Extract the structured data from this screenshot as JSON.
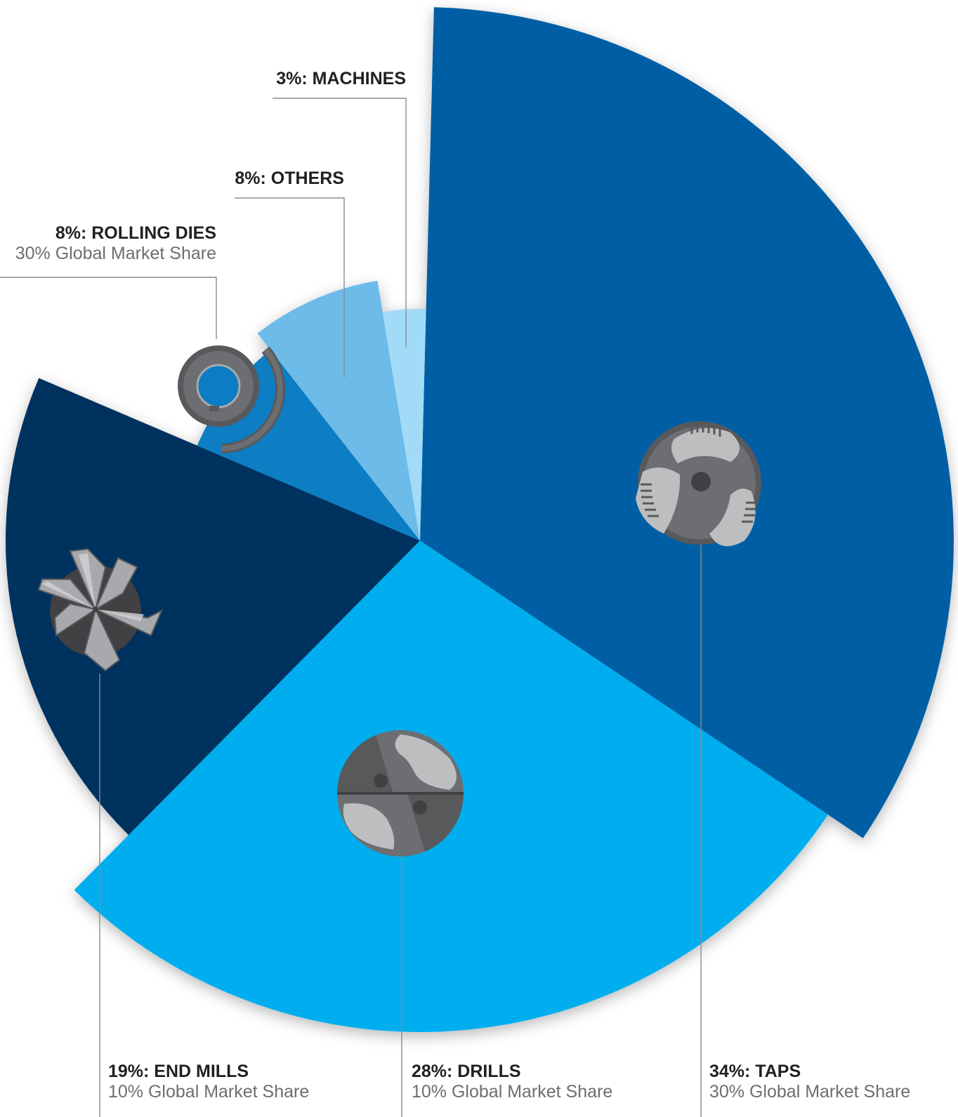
{
  "chart_data": {
    "type": "pie",
    "title": "",
    "slices": [
      {
        "key": "taps",
        "label": "34%: TAPS",
        "value": 34,
        "share": "30% Global Market Share",
        "color": "#005fa4",
        "icon": "tap-cross-section-icon"
      },
      {
        "key": "drills",
        "label": "28%: DRILLS",
        "value": 28,
        "share": "10% Global Market Share",
        "color": "#00aeef",
        "icon": "drill-cross-section-icon"
      },
      {
        "key": "end_mills",
        "label": "19%: END MILLS",
        "value": 19,
        "share": "10% Global Market Share",
        "color": "#00305e",
        "icon": "end-mill-cross-section-icon"
      },
      {
        "key": "rolling_dies",
        "label": "8%: ROLLING DIES",
        "value": 8,
        "share": "30% Global Market Share",
        "color": "#0c7dc4",
        "icon": "rolling-die-icon"
      },
      {
        "key": "others",
        "label": "8%: OTHERS",
        "value": 8,
        "share": "",
        "color": "#6cbbe9",
        "icon": ""
      },
      {
        "key": "machines",
        "label": "3%: MACHINES",
        "value": 3,
        "share": "",
        "color": "#a2dbf7",
        "icon": ""
      }
    ]
  }
}
